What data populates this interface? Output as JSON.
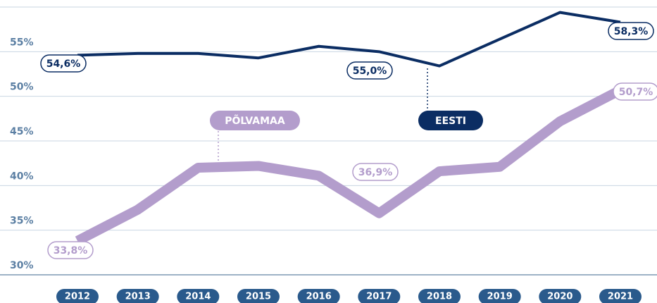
{
  "chart_data": {
    "type": "line",
    "x": [
      2012,
      2013,
      2014,
      2015,
      2016,
      2017,
      2018,
      2019,
      2020,
      2021
    ],
    "series": [
      {
        "name": "EESTI",
        "color": "#0b2d63",
        "values": [
          54.6,
          54.8,
          54.8,
          54.3,
          55.6,
          55.0,
          53.4,
          56.4,
          59.4,
          58.3
        ],
        "value_labels": [
          "54,6%",
          null,
          null,
          null,
          null,
          "55,0%",
          null,
          null,
          null,
          "58,3%"
        ]
      },
      {
        "name": "PÕLVAMAA",
        "color": "#b39dcc",
        "values": [
          33.8,
          37.3,
          42.0,
          42.2,
          41.1,
          36.9,
          41.6,
          42.1,
          47.2,
          50.7
        ],
        "value_labels": [
          "33,8%",
          null,
          null,
          null,
          null,
          "36,9%",
          null,
          null,
          null,
          "50,7%"
        ]
      }
    ],
    "xlim": [
      2012,
      2021
    ],
    "ylim": [
      30,
      60
    ],
    "yticks": [
      {
        "value": 30,
        "label": "30%"
      },
      {
        "value": 35,
        "label": "35%"
      },
      {
        "value": 40,
        "label": "40%"
      },
      {
        "value": 45,
        "label": "45%"
      },
      {
        "value": 50,
        "label": "50%"
      },
      {
        "value": 55,
        "label": "55%"
      },
      60
    ],
    "grid": true
  }
}
